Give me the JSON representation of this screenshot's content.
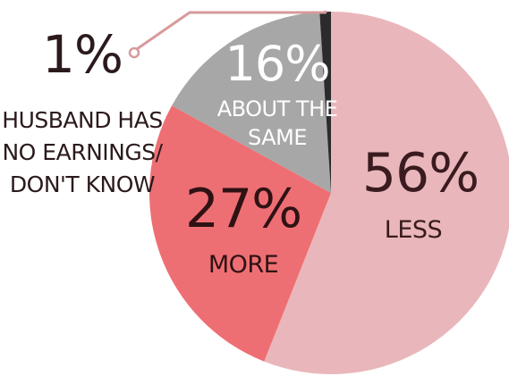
{
  "chart_data": {
    "type": "pie",
    "start_angle_deg": 90,
    "direction": "clockwise",
    "slices": [
      {
        "value": 56,
        "value_label": "56%",
        "label": [
          "LESS"
        ],
        "color": "#e9b7bb",
        "text_color": "#3a1b1f",
        "label_pos": "right"
      },
      {
        "value": 27,
        "value_label": "27%",
        "label": [
          "MORE"
        ],
        "color": "#ee6f73",
        "text_color": "#2f1214",
        "label_pos": "left"
      },
      {
        "value": 16,
        "value_label": "16%",
        "label": [
          "ABOUT THE",
          "SAME"
        ],
        "color": "#a7a7a7",
        "text_color": "#ffffff",
        "label_pos": "upper-left"
      },
      {
        "value": 1,
        "value_label": "1%",
        "label": [
          "HUSBAND HAS",
          "NO EARNINGS/",
          "DON'T KNOW"
        ],
        "color": "#2b2b2b",
        "text_color": "#2b1a1c",
        "label_pos": "callout-left"
      }
    ],
    "callout_color": "#d89a9c"
  }
}
